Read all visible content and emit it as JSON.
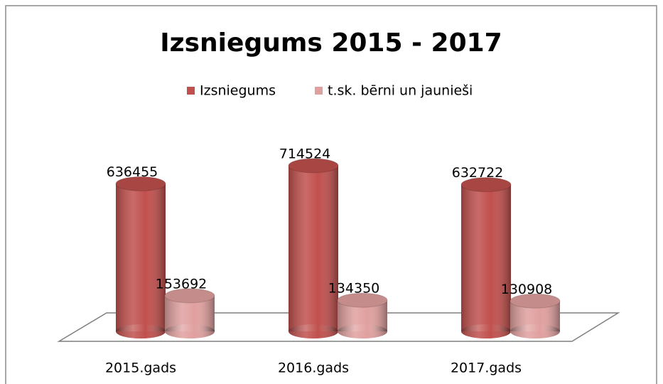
{
  "chart_data": {
    "type": "bar",
    "title": "Izsniegums 2015 - 2017",
    "categories": [
      "2015.gads",
      "2016.gads",
      "2017.gads"
    ],
    "series": [
      {
        "name": "Izsniegums",
        "color": "#c0504d",
        "values": [
          636455,
          714524,
          632722
        ]
      },
      {
        "name": "t.sk. bērni un jaunieši",
        "color": "#e0a09f",
        "values": [
          153692,
          134350,
          130908
        ]
      }
    ],
    "legend": "top"
  }
}
